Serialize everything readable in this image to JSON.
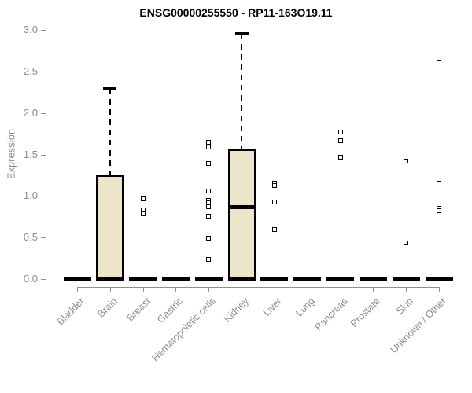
{
  "chart_data": {
    "type": "boxplot",
    "title": "ENSG00000255550 - RP11-163O19.11",
    "ylabel": "Expression",
    "xlabel": "",
    "ylim": [
      0,
      3
    ],
    "ytick_labels": [
      "0.0",
      "0.5",
      "1.0",
      "1.5",
      "2.0",
      "2.5",
      "3.0"
    ],
    "ytick_values": [
      0,
      0.5,
      1,
      1.5,
      2,
      2.5,
      3
    ],
    "grid": false,
    "legend": null,
    "categories": [
      "Bladder",
      "Brain",
      "Breast",
      "Gastric",
      "Hematopoietic cells",
      "Kidney",
      "Liver",
      "Lung",
      "Pancreas",
      "Prostate",
      "Skin",
      "Unknown / Other"
    ],
    "series": [
      {
        "category": "Bladder",
        "whisker_low": 0,
        "q1": 0,
        "median": 0,
        "q3": 0,
        "whisker_high": 0,
        "outliers": []
      },
      {
        "category": "Brain",
        "whisker_low": 0,
        "q1": 0,
        "median": 0,
        "q3": 1.25,
        "whisker_high": 2.29,
        "outliers": []
      },
      {
        "category": "Breast",
        "whisker_low": 0,
        "q1": 0,
        "median": 0,
        "q3": 0,
        "whisker_high": 0,
        "outliers": [
          0.97,
          0.83,
          0.79
        ]
      },
      {
        "category": "Gastric",
        "whisker_low": 0,
        "q1": 0,
        "median": 0,
        "q3": 0,
        "whisker_high": 0,
        "outliers": []
      },
      {
        "category": "Hematopoietic cells",
        "whisker_low": 0,
        "q1": 0,
        "median": 0,
        "q3": 0,
        "whisker_high": 0,
        "outliers": [
          1.65,
          1.59,
          1.39,
          1.06,
          0.95,
          0.92,
          0.87,
          0.76,
          0.49,
          0.24
        ]
      },
      {
        "category": "Kidney",
        "whisker_low": 0,
        "q1": 0,
        "median": 0.87,
        "q3": 1.56,
        "whisker_high": 2.95,
        "outliers": []
      },
      {
        "category": "Liver",
        "whisker_low": 0,
        "q1": 0,
        "median": 0,
        "q3": 0,
        "whisker_high": 0,
        "outliers": [
          1.15,
          1.13,
          0.93,
          0.6
        ]
      },
      {
        "category": "Lung",
        "whisker_low": 0,
        "q1": 0,
        "median": 0,
        "q3": 0,
        "whisker_high": 0,
        "outliers": []
      },
      {
        "category": "Pancreas",
        "whisker_low": 0,
        "q1": 0,
        "median": 0,
        "q3": 0,
        "whisker_high": 0,
        "outliers": [
          1.77,
          1.67,
          1.47
        ]
      },
      {
        "category": "Prostate",
        "whisker_low": 0,
        "q1": 0,
        "median": 0,
        "q3": 0,
        "whisker_high": 0,
        "outliers": []
      },
      {
        "category": "Skin",
        "whisker_low": 0,
        "q1": 0,
        "median": 0,
        "q3": 0,
        "whisker_high": 0,
        "outliers": [
          1.42,
          0.44
        ]
      },
      {
        "category": "Unknown / Other",
        "whisker_low": 0,
        "q1": 0,
        "median": 0,
        "q3": 0,
        "whisker_high": 0,
        "outliers": [
          2.61,
          2.03,
          1.15,
          0.85,
          0.82
        ]
      }
    ],
    "colors": {
      "box_fill": "#ece5c9",
      "box_border": "#000000",
      "whisker": "#000000",
      "outlier_border": "#000000",
      "outlier_fill": "#ffffff",
      "axis": "#919191",
      "tick_text": "#8c8c8c",
      "title_text": "#000000",
      "background": "#ffffff"
    }
  }
}
